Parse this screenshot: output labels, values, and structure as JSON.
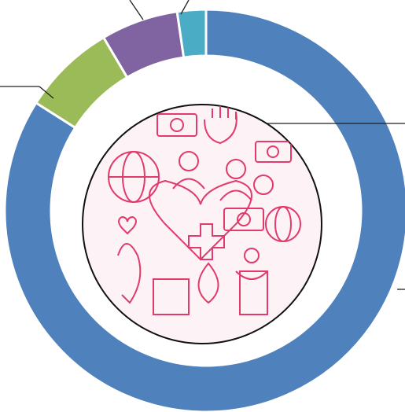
{
  "chart_data": {
    "type": "pie",
    "donut": true,
    "categories": [
      null,
      null,
      null,
      null
    ],
    "values": [
      84,
      7.5,
      6.2,
      2.3
    ],
    "colors": [
      "#4f81bd",
      "#9bbb59",
      "#8064a2",
      "#4bacc6"
    ]
  }
}
